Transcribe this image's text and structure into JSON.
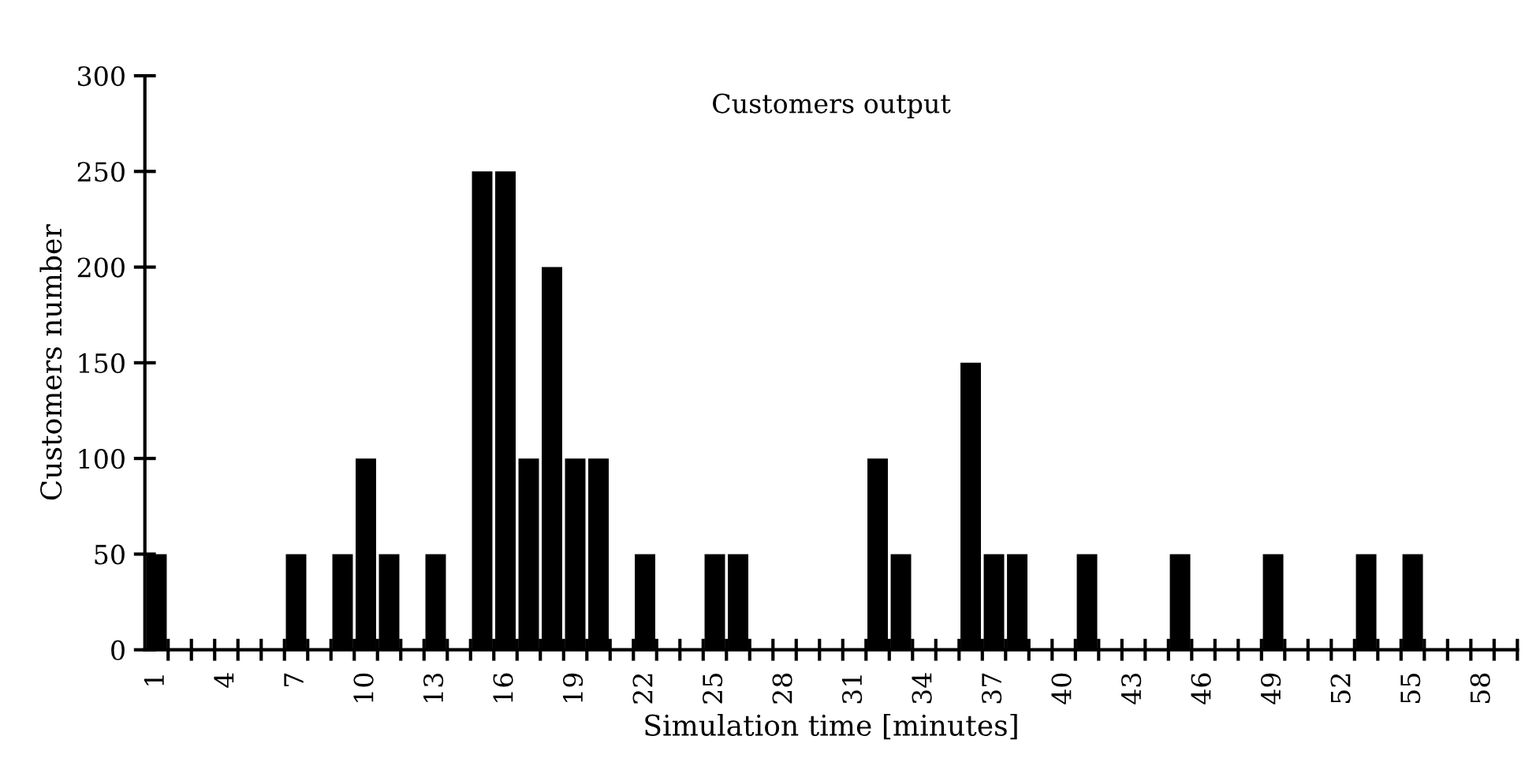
{
  "chart_data": {
    "type": "bar",
    "title": "Customers output",
    "xlabel": "Simulation time [minutes]",
    "ylabel": "Customers number",
    "categories": [
      "1",
      null,
      null,
      "4",
      null,
      null,
      "7",
      null,
      null,
      "10",
      null,
      null,
      "13",
      null,
      null,
      "16",
      null,
      null,
      "19",
      null,
      null,
      "22",
      null,
      null,
      "25",
      null,
      null,
      "28",
      null,
      null,
      "31",
      null,
      null,
      "34",
      null,
      null,
      "37",
      null,
      null,
      "40",
      null,
      null,
      "43",
      null,
      null,
      "46",
      null,
      null,
      "49",
      null,
      null,
      "52",
      null,
      null,
      "55",
      null,
      null,
      "58",
      null
    ],
    "values": [
      50,
      0,
      0,
      0,
      0,
      0,
      50,
      0,
      50,
      100,
      50,
      0,
      50,
      0,
      250,
      250,
      100,
      200,
      100,
      100,
      0,
      50,
      0,
      0,
      50,
      50,
      0,
      0,
      0,
      0,
      0,
      100,
      50,
      0,
      0,
      150,
      50,
      50,
      0,
      0,
      50,
      0,
      0,
      0,
      50,
      0,
      0,
      0,
      50,
      0,
      0,
      0,
      50,
      0,
      50,
      0,
      0,
      0,
      0
    ],
    "color": "#000000",
    "ylim": [
      0,
      300
    ],
    "yticks": [
      0,
      50,
      100,
      150,
      200,
      250,
      300
    ],
    "grid": false,
    "legend": false
  }
}
